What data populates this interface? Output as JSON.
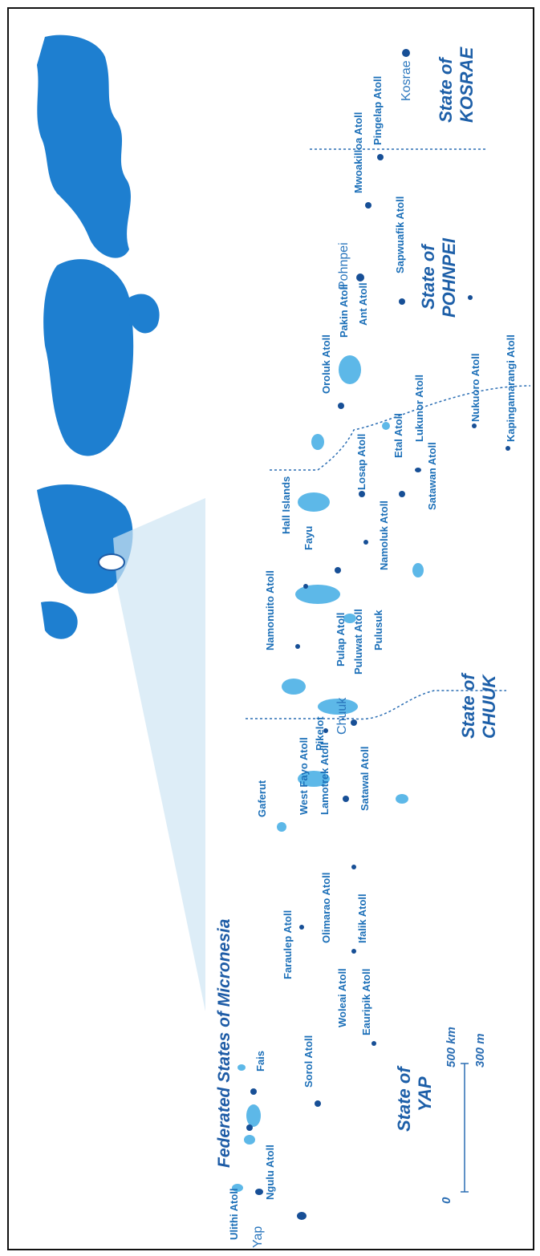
{
  "map": {
    "title": "Federated States of Micronesia",
    "states": [
      {
        "key": "yap",
        "line1": "State of",
        "line2": "YAP"
      },
      {
        "key": "chuuk",
        "line1": "State of",
        "line2": "CHUUK"
      },
      {
        "key": "pohnpei",
        "line1": "State of",
        "line2": "POHNPEI"
      },
      {
        "key": "kosrae",
        "line1": "State of",
        "line2": "KOSRAE"
      }
    ],
    "major_islands": [
      "Yap",
      "Chuuk",
      "Pohnpei",
      "Kosrae"
    ],
    "places": [
      "Ngulu Atoll",
      "Ulithi Atoll",
      "Fais",
      "Sorol Atoll",
      "Eauripik Atoll",
      "Woleai Atoll",
      "Faraulep Atoll",
      "Olimarao Atoll",
      "Ifalik Atoll",
      "Gaferut",
      "West Fayo Atoll",
      "Lamotrek Atoll",
      "Satawal Atoll",
      "Pikelot",
      "Namonuito Atoll",
      "Pulap Atoll",
      "Puluwat Atoll",
      "Pulusuk",
      "Fayu",
      "Hall Islands",
      "Namoluk Atoll",
      "Losap Atoll",
      "Satawan Atoll",
      "Etal Atoll",
      "Lukunor Atoll",
      "Oroluk Atoll",
      "Pakin Atoll",
      "Ant Atoll",
      "Sapwuafik Atoll",
      "Nukuoro Atoll",
      "Kapingamarangi Atoll",
      "Mwoakilloa Atoll",
      "Pingelap Atoll"
    ],
    "scale": {
      "zero": "0",
      "km": "500 km",
      "mi": "300 m"
    },
    "colors": {
      "land": "#1f7fd0",
      "land_light": "#5db8e8",
      "state_label": "#1d5fa8",
      "label": "#1b6fb8"
    }
  }
}
